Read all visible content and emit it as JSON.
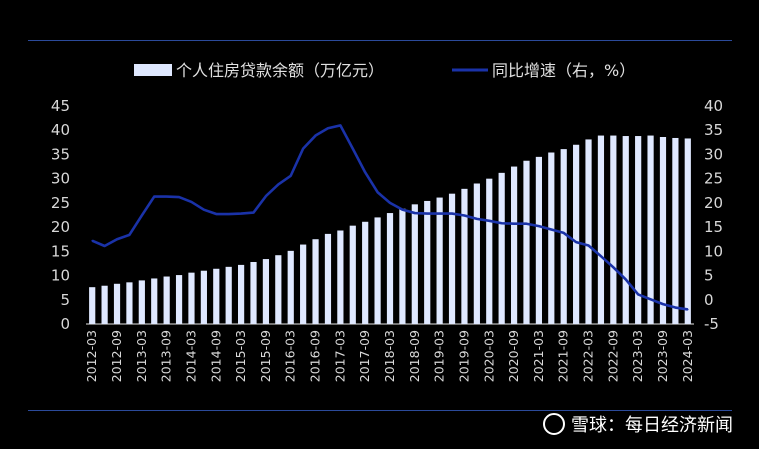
{
  "chart_data": {
    "type": "bar+line",
    "categories": [
      "2012-03",
      "2012-06",
      "2012-09",
      "2012-12",
      "2013-03",
      "2013-06",
      "2013-09",
      "2013-12",
      "2014-03",
      "2014-06",
      "2014-09",
      "2014-12",
      "2015-03",
      "2015-06",
      "2015-09",
      "2015-12",
      "2016-03",
      "2016-06",
      "2016-09",
      "2016-12",
      "2017-03",
      "2017-06",
      "2017-09",
      "2017-12",
      "2018-03",
      "2018-06",
      "2018-09",
      "2018-12",
      "2019-03",
      "2019-06",
      "2019-09",
      "2019-12",
      "2020-03",
      "2020-06",
      "2020-09",
      "2020-12",
      "2021-03",
      "2021-06",
      "2021-09",
      "2021-12",
      "2022-03",
      "2022-06",
      "2022-09",
      "2022-12",
      "2023-03",
      "2023-06",
      "2023-09",
      "2023-12",
      "2024-03"
    ],
    "x_tick_labels": [
      "2012-03",
      "2012-09",
      "2013-03",
      "2013-09",
      "2014-03",
      "2014-09",
      "2015-03",
      "2015-09",
      "2016-03",
      "2016-09",
      "2017-03",
      "2017-09",
      "2018-03",
      "2018-09",
      "2019-03",
      "2019-09",
      "2020-03",
      "2020-09",
      "2021-03",
      "2021-09",
      "2022-03",
      "2022-09",
      "2023-03",
      "2023-09",
      "2024-03"
    ],
    "series": [
      {
        "name": "个人住房贷款余额（万亿元）",
        "type": "bar",
        "axis": "left",
        "color": "#dfe8ff",
        "values": [
          7.6,
          7.9,
          8.3,
          8.6,
          9.0,
          9.4,
          9.8,
          10.1,
          10.6,
          11.0,
          11.4,
          11.8,
          12.2,
          12.8,
          13.4,
          14.2,
          15.1,
          16.4,
          17.5,
          18.6,
          19.3,
          20.3,
          21.1,
          22.0,
          22.9,
          23.8,
          24.7,
          25.4,
          26.1,
          26.9,
          27.9,
          29.0,
          30.0,
          31.2,
          32.5,
          33.7,
          34.5,
          35.4,
          36.1,
          37.0,
          38.1,
          38.9,
          38.9,
          38.8,
          38.8,
          38.9,
          38.6,
          38.4,
          38.3
        ]
      },
      {
        "name": "同比增速（右，%）",
        "type": "line",
        "axis": "right",
        "color": "#1a32a8",
        "values": [
          12.2,
          11.1,
          12.5,
          13.4,
          17.4,
          21.3,
          21.3,
          21.2,
          20.2,
          18.6,
          17.7,
          17.7,
          17.8,
          18.0,
          21.4,
          23.8,
          25.6,
          31.2,
          33.9,
          35.4,
          36.0,
          31.2,
          26.3,
          22.2,
          20.0,
          18.6,
          17.9,
          17.8,
          17.8,
          17.8,
          17.4,
          16.7,
          16.3,
          15.8,
          15.7,
          15.7,
          15.2,
          14.5,
          13.8,
          11.9,
          11.2,
          9.0,
          6.7,
          4.2,
          1.1,
          0.1,
          -0.9,
          -1.6,
          -2.0
        ]
      }
    ],
    "y_left": {
      "min": 0,
      "max": 45,
      "ticks": [
        0,
        5,
        10,
        15,
        20,
        25,
        30,
        35,
        40,
        45
      ]
    },
    "y_right": {
      "min": -5,
      "max": 40,
      "ticks": [
        -5,
        0,
        5,
        10,
        15,
        20,
        25,
        30,
        35,
        40
      ]
    },
    "legend_position": "top",
    "grid": false
  },
  "watermark": {
    "text": "雪球：每日经济新闻"
  }
}
